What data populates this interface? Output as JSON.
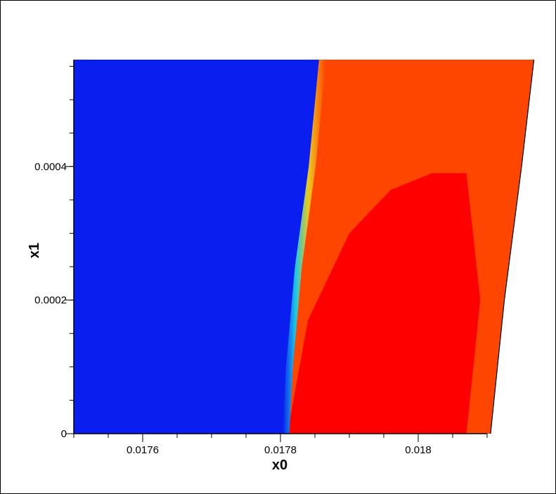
{
  "chart_data": {
    "type": "heatmap",
    "title": "",
    "xlabel": "x0",
    "ylabel": "x1",
    "xlim": [
      0.0175,
      0.0181
    ],
    "ylim": [
      0,
      0.00056
    ],
    "x_ticks": [
      {
        "value": 0.0176,
        "label": "0.0176"
      },
      {
        "value": 0.0178,
        "label": "0.0178"
      },
      {
        "value": 0.018,
        "label": "0.018"
      }
    ],
    "y_ticks": [
      {
        "value": 0,
        "label": "0"
      },
      {
        "value": 0.0002,
        "label": "0.0002"
      },
      {
        "value": 0.0004,
        "label": "0.0004"
      }
    ],
    "x_minor_step": 5e-05,
    "y_minor_step": 5e-05,
    "colors": {
      "low": "#0a1ef0",
      "front_cyan": "#19c8e6",
      "front_yellow": "#ebc81e",
      "mid": "#ff4600",
      "high": "#ff0000",
      "axis": "#000000"
    },
    "regions": [
      {
        "level": "high",
        "boundary": [
          [
            0.01781,
            0
          ],
          [
            0.01784,
            0.00017
          ],
          [
            0.0179,
            0.0003
          ],
          [
            0.01796,
            0.000365
          ],
          [
            0.01802,
            0.00039
          ],
          [
            0.01807,
            0.00039
          ],
          [
            0.01809,
            0.0002
          ],
          [
            0.01807,
            0
          ]
        ]
      },
      {
        "level": "mid",
        "left_edge": [
          [
            0.017807,
            0
          ],
          [
            0.017812,
            0.0001
          ],
          [
            0.017825,
            0.00025
          ],
          [
            0.017845,
            0.0004
          ],
          [
            0.01786,
            0.00056
          ]
        ],
        "right_edge": [
          [
            0.018105,
            0
          ],
          [
            0.018125,
            0.0002
          ],
          [
            0.01815,
            0.0004
          ],
          [
            0.018168,
            0.00056
          ]
        ]
      },
      {
        "level": "low",
        "x_min": 0.0175
      }
    ]
  }
}
